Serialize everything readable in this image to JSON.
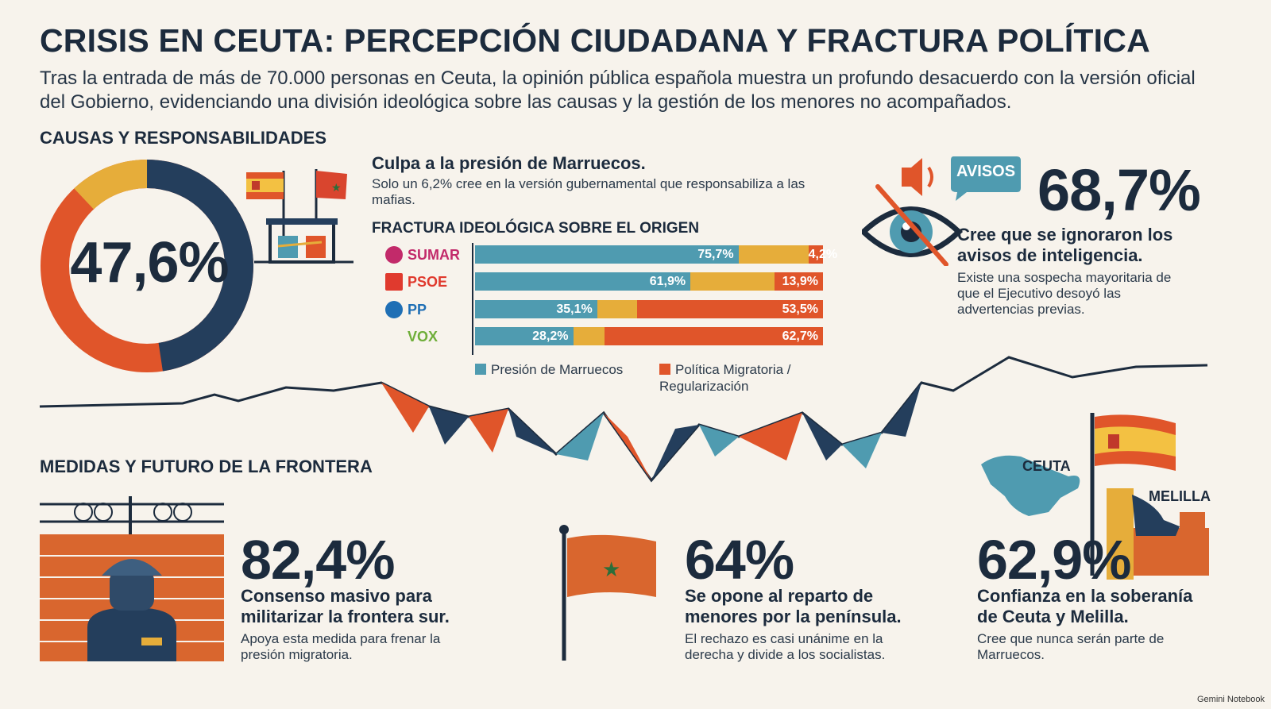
{
  "title": "CRISIS EN CEUTA: PERCEPCIÓN CIUDADANA Y FRACTURA POLÍTICA",
  "intro": "Tras la entrada de más de 70.000 personas en Ceuta, la opinión pública española muestra un profundo desacuerdo con la versión oficial del Gobierno, evidenciando una división ideológica sobre las causas y la gestión de los menores no acompañados.",
  "section_causes": {
    "heading": "CAUSAS Y RESPONSABILIDADES",
    "donut_value": "47,6%",
    "donut_fraction": 0.476,
    "headline": "Culpa a la presión de Marruecos.",
    "detail": "Solo un 6,2% cree en la versión gubernamental que responsabiliza a las mafias."
  },
  "fracture": {
    "heading": "FRACTURA IDEOLÓGICA SOBRE EL ORIGEN",
    "parties": [
      {
        "name": "SUMAR",
        "marruecos": 75.7,
        "politica": 4.2,
        "marruecos_label": "75,7%",
        "politica_label": "4,2%",
        "color": "#c22a6a"
      },
      {
        "name": "PSOE",
        "marruecos": 61.9,
        "politica": 13.9,
        "marruecos_label": "61,9%",
        "politica_label": "13,9%",
        "color": "#e03a2e"
      },
      {
        "name": "PP",
        "marruecos": 35.1,
        "politica": 53.5,
        "marruecos_label": "35,1%",
        "politica_label": "53,5%",
        "color": "#1f6fb5"
      },
      {
        "name": "VOX",
        "marruecos": 28.2,
        "politica": 62.7,
        "marruecos_label": "28,2%",
        "politica_label": "62,7%",
        "color": "#6fae3a"
      }
    ],
    "legend": {
      "marruecos": "Presión de Marruecos",
      "politica": "Política Migratoria / Regularización"
    },
    "colors": {
      "marruecos": "#4f9bb0",
      "other": "#e6ad3a",
      "politica": "#e0552a"
    }
  },
  "intelligence": {
    "badge": "AVISOS",
    "value": "68,7%",
    "headline": "Cree que se ignoraron los avisos de inteligencia.",
    "detail": "Existe una sospecha mayoritaria de que el Ejecutivo desoyó las advertencias previas."
  },
  "section_measures": {
    "heading": "MEDIDAS Y FUTURO DE LA FRONTERA"
  },
  "militarize": {
    "value": "82,4%",
    "headline": "Consenso masivo para militarizar la frontera sur.",
    "detail": "Apoya esta medida para frenar la presión migratoria."
  },
  "minors": {
    "value": "64%",
    "headline": "Se opone al reparto de menores por la península.",
    "detail": "El rechazo es casi unánime en la derecha y divide a los socialistas."
  },
  "sovereignty": {
    "value": "62,9%",
    "label_ceuta": "CEUTA",
    "label_melilla": "MELILLA",
    "headline": "Confianza en la soberanía de Ceuta y Melilla.",
    "detail": "Cree que nunca serán parte de Marruecos."
  },
  "watermark": "Gemini Notebook"
}
